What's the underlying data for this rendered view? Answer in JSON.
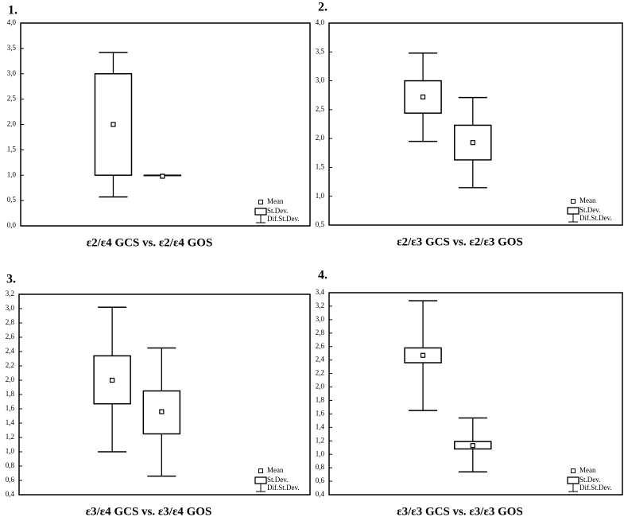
{
  "chart_data": [
    {
      "type": "box",
      "label": "1.",
      "xlabel": "ε2/ε4 GCS vs. ε2/ε4 GOS",
      "color": "#000000",
      "ylim": [
        0.0,
        4.0
      ],
      "yticks": [
        {
          "value": 0.0,
          "label": "0,0"
        },
        {
          "value": 0.5,
          "label": "0,5"
        },
        {
          "value": 1.0,
          "label": "1,0"
        },
        {
          "value": 1.5,
          "label": "1,5"
        },
        {
          "value": 2.0,
          "label": "2,0"
        },
        {
          "value": 2.5,
          "label": "2,5"
        },
        {
          "value": 3.0,
          "label": "3,0"
        },
        {
          "value": 3.5,
          "label": "3,5"
        },
        {
          "value": 4.0,
          "label": "4,0"
        }
      ],
      "legend": {
        "mean": "Mean",
        "box": "St.Dev.",
        "whisker": "Dif.St.Dev."
      },
      "boxes": [
        {
          "mean": 2.0,
          "box_low": 1.0,
          "box_high": 3.0,
          "whisker_low": 0.57,
          "whisker_high": 3.42
        },
        {
          "mean": 0.98,
          "box_low": 1.0,
          "box_high": 1.0,
          "whisker_low": 1.0,
          "whisker_high": 1.0
        }
      ]
    },
    {
      "type": "box",
      "label": "2.",
      "xlabel": "ε2/ε3 GCS vs. ε2/ε3 GOS",
      "color": "#000000",
      "ylim": [
        0.5,
        4.0
      ],
      "yticks": [
        {
          "value": 0.5,
          "label": "0,5"
        },
        {
          "value": 1.0,
          "label": "1,0"
        },
        {
          "value": 1.5,
          "label": "1,5"
        },
        {
          "value": 2.0,
          "label": "2,0"
        },
        {
          "value": 2.5,
          "label": "2,5"
        },
        {
          "value": 3.0,
          "label": "3,0"
        },
        {
          "value": 3.5,
          "label": "3,5"
        },
        {
          "value": 4.0,
          "label": "4,0"
        }
      ],
      "legend": {
        "mean": "Mean",
        "box": "St.Dev.",
        "whisker": "Dif.St.Dev."
      },
      "boxes": [
        {
          "mean": 2.72,
          "box_low": 2.44,
          "box_high": 3.0,
          "whisker_low": 1.95,
          "whisker_high": 3.48
        },
        {
          "mean": 1.93,
          "box_low": 1.63,
          "box_high": 2.23,
          "whisker_low": 1.15,
          "whisker_high": 2.71
        }
      ]
    },
    {
      "type": "box",
      "label": "3.",
      "xlabel": "ε3/ε4 GCS vs. ε3/ε4 GOS",
      "color": "#000000",
      "ylim": [
        0.4,
        3.2
      ],
      "yticks": [
        {
          "value": 0.4,
          "label": "0,4"
        },
        {
          "value": 0.6,
          "label": "0,6"
        },
        {
          "value": 0.8,
          "label": "0,8"
        },
        {
          "value": 1.0,
          "label": "1,0"
        },
        {
          "value": 1.2,
          "label": "1,2"
        },
        {
          "value": 1.4,
          "label": "1,4"
        },
        {
          "value": 1.6,
          "label": "1,6"
        },
        {
          "value": 1.8,
          "label": "1,8"
        },
        {
          "value": 2.0,
          "label": "2,0"
        },
        {
          "value": 2.2,
          "label": "2,2"
        },
        {
          "value": 2.4,
          "label": "2,4"
        },
        {
          "value": 2.6,
          "label": "2,6"
        },
        {
          "value": 2.8,
          "label": "2,8"
        },
        {
          "value": 3.0,
          "label": "3,0"
        },
        {
          "value": 3.2,
          "label": "3,2"
        }
      ],
      "legend": {
        "mean": "Mean",
        "box": "St.Dev.",
        "whisker": "Dif.St.Dev."
      },
      "boxes": [
        {
          "mean": 2.0,
          "box_low": 1.67,
          "box_high": 2.34,
          "whisker_low": 1.0,
          "whisker_high": 3.02
        },
        {
          "mean": 1.56,
          "box_low": 1.25,
          "box_high": 1.85,
          "whisker_low": 0.66,
          "whisker_high": 2.45
        }
      ]
    },
    {
      "type": "box",
      "label": "4.",
      "xlabel": "ε3/ε3 GCS vs. ε3/ε3 GOS",
      "color": "#000000",
      "ylim": [
        0.4,
        3.4
      ],
      "yticks": [
        {
          "value": 0.4,
          "label": "0,4"
        },
        {
          "value": 0.6,
          "label": "0,6"
        },
        {
          "value": 0.8,
          "label": "0,8"
        },
        {
          "value": 1.0,
          "label": "1,0"
        },
        {
          "value": 1.2,
          "label": "1,2"
        },
        {
          "value": 1.4,
          "label": "1,4"
        },
        {
          "value": 1.6,
          "label": "1,6"
        },
        {
          "value": 1.8,
          "label": "1,8"
        },
        {
          "value": 2.0,
          "label": "2,0"
        },
        {
          "value": 2.2,
          "label": "2,2"
        },
        {
          "value": 2.4,
          "label": "2,4"
        },
        {
          "value": 2.6,
          "label": "2,6"
        },
        {
          "value": 2.8,
          "label": "2,8"
        },
        {
          "value": 3.0,
          "label": "3,0"
        },
        {
          "value": 3.2,
          "label": "3,2"
        },
        {
          "value": 3.4,
          "label": "3,4"
        }
      ],
      "legend": {
        "mean": "Mean",
        "box": "St.Dev.",
        "whisker": "Dif.St.Dev."
      },
      "boxes": [
        {
          "mean": 2.47,
          "box_low": 2.36,
          "box_high": 2.58,
          "whisker_low": 1.65,
          "whisker_high": 3.28
        },
        {
          "mean": 1.13,
          "box_low": 1.08,
          "box_high": 1.19,
          "whisker_low": 0.74,
          "whisker_high": 1.54
        }
      ]
    }
  ]
}
